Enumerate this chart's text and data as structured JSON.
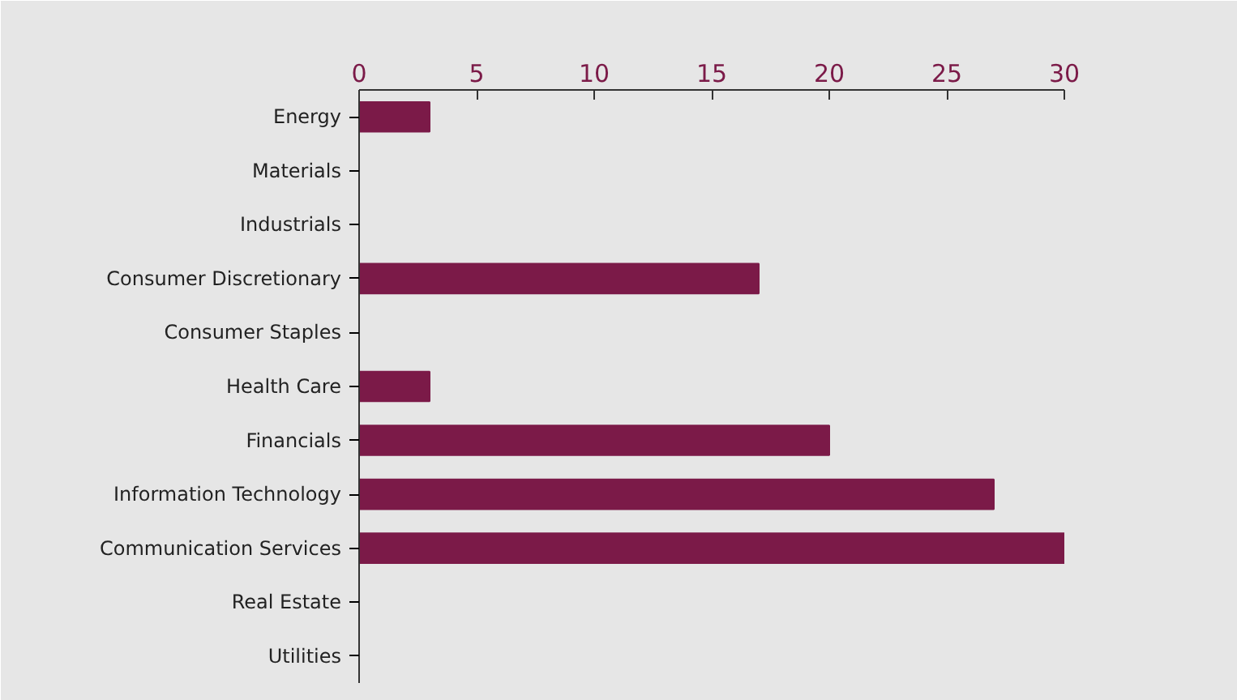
{
  "chart_data": {
    "type": "bar",
    "orientation": "horizontal",
    "categories": [
      "Energy",
      "Materials",
      "Industrials",
      "Consumer Discretionary",
      "Consumer Staples",
      "Health Care",
      "Financials",
      "Information Technology",
      "Communication Services",
      "Real Estate",
      "Utilities"
    ],
    "values": [
      3,
      0,
      0,
      17,
      0,
      3,
      20,
      27,
      30,
      0,
      0
    ],
    "color": "#7b1a48",
    "xlim": [
      0,
      30
    ],
    "xticks": [
      0,
      5,
      10,
      15,
      20,
      25,
      30
    ]
  }
}
